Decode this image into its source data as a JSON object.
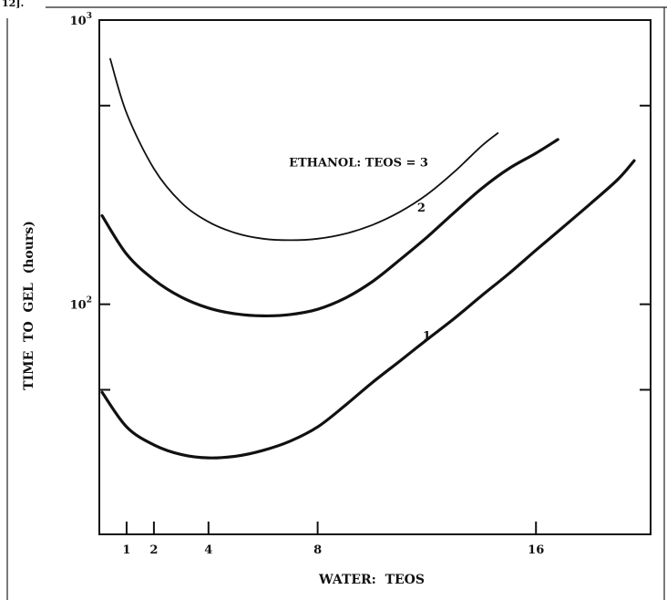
{
  "page": {
    "top_fragment": "12]."
  },
  "chart_data": {
    "type": "line",
    "title": "",
    "xlabel": "WATER:  TEOS",
    "ylabel": "TIME  TO  GEL  (hours)",
    "yscale": "log",
    "xlim": [
      0,
      20.2
    ],
    "ylim": [
      15.5,
      1000
    ],
    "x_ticks": [
      1,
      2,
      4,
      8,
      16
    ],
    "y_tick_labels": [
      {
        "value": 1000,
        "base": "10",
        "exp": "3"
      },
      {
        "value": 100,
        "base": "10",
        "exp": "2"
      }
    ],
    "y_minor_ticks": [
      50,
      500
    ],
    "legend": "none",
    "series": [
      {
        "name": "1",
        "label_at": [
          12,
          75
        ],
        "points": [
          [
            0.1,
            49
          ],
          [
            1,
            37
          ],
          [
            2,
            32
          ],
          [
            3,
            29.6
          ],
          [
            4,
            28.8
          ],
          [
            5,
            29.2
          ],
          [
            6,
            30.6
          ],
          [
            7,
            33
          ],
          [
            8,
            37
          ],
          [
            9,
            44
          ],
          [
            10,
            53
          ],
          [
            11,
            63
          ],
          [
            12,
            75
          ],
          [
            13,
            89
          ],
          [
            14,
            107
          ],
          [
            15,
            128
          ],
          [
            16,
            155
          ],
          [
            17,
            187
          ],
          [
            18,
            226
          ],
          [
            19,
            275
          ],
          [
            19.6,
            320
          ]
        ]
      },
      {
        "name": "2",
        "label_at": [
          11.8,
          212
        ],
        "points": [
          [
            0.1,
            205
          ],
          [
            1,
            150
          ],
          [
            2,
            122
          ],
          [
            3,
            106
          ],
          [
            4,
            97
          ],
          [
            5,
            92.5
          ],
          [
            6,
            91
          ],
          [
            7,
            92
          ],
          [
            8,
            96
          ],
          [
            9,
            105
          ],
          [
            10,
            120
          ],
          [
            11,
            143
          ],
          [
            12,
            172
          ],
          [
            13,
            210
          ],
          [
            14,
            255
          ],
          [
            15,
            300
          ],
          [
            16,
            340
          ],
          [
            16.8,
            380
          ]
        ]
      },
      {
        "name": "ETHANOL:  TEOS  =  3",
        "label_at": [
          9.5,
          305
        ],
        "points": [
          [
            0.4,
            730
          ],
          [
            1,
            470
          ],
          [
            2,
            300
          ],
          [
            3,
            228
          ],
          [
            4,
            195
          ],
          [
            5,
            178
          ],
          [
            6,
            170
          ],
          [
            7,
            168
          ],
          [
            8,
            170
          ],
          [
            9,
            177
          ],
          [
            10,
            190
          ],
          [
            11,
            211
          ],
          [
            12,
            243
          ],
          [
            13,
            292
          ],
          [
            14,
            360
          ],
          [
            14.6,
            400
          ]
        ]
      }
    ]
  }
}
